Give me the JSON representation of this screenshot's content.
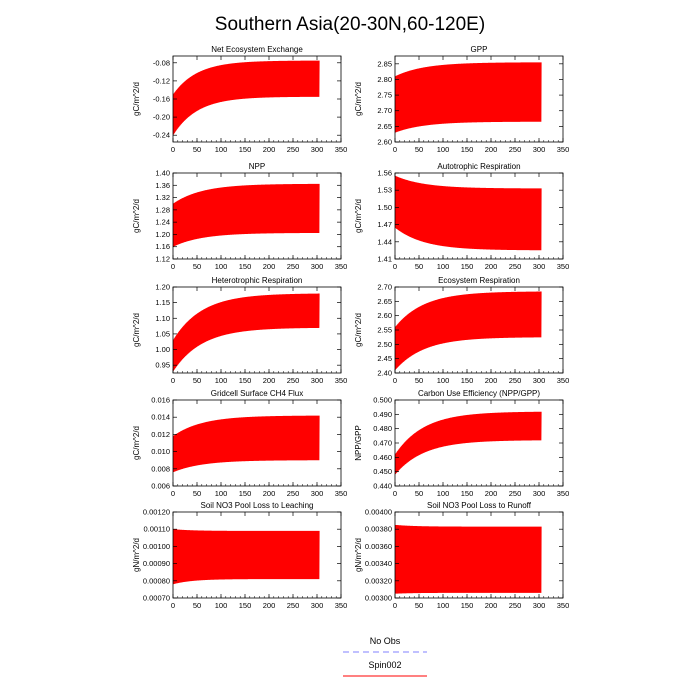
{
  "title": "Southern Asia(20-30N,60-120E)",
  "legend": {
    "items": [
      {
        "label": "No Obs",
        "color": "#8080ff",
        "dash": true
      },
      {
        "label": "Spin002",
        "color": "#ff0000",
        "dash": false
      }
    ]
  },
  "colors": {
    "series": "#ff0000",
    "no_obs": "#8080ff"
  },
  "chart_data": [
    {
      "type": "line",
      "title": "Net Ecosystem Exchange",
      "ylabel": "gC/m^2/d",
      "xlim": [
        0,
        350
      ],
      "xticks": [
        0,
        50,
        100,
        150,
        200,
        250,
        300,
        350
      ],
      "ylim": [
        -0.255,
        -0.065
      ],
      "yticks": [
        -0.24,
        -0.2,
        -0.16,
        -0.12,
        -0.08
      ],
      "ytick_labels": [
        "-0.24",
        "-0.20",
        "-0.16",
        "-0.12",
        "-0.08"
      ],
      "series": [
        {
          "name": "Spin002",
          "years": 305,
          "upper_start": -0.15,
          "upper_end": -0.075,
          "lower_start": -0.24,
          "lower_end": -0.155,
          "tau": 50
        }
      ]
    },
    {
      "type": "line",
      "title": "GPP",
      "ylabel": "gC/m^2/d",
      "xlim": [
        0,
        350
      ],
      "xticks": [
        0,
        50,
        100,
        150,
        200,
        250,
        300,
        350
      ],
      "ylim": [
        2.6,
        2.875
      ],
      "yticks": [
        2.6,
        2.65,
        2.7,
        2.75,
        2.8,
        2.85
      ],
      "ytick_labels": [
        "2.60",
        "2.65",
        "2.70",
        "2.75",
        "2.80",
        "2.85"
      ],
      "series": [
        {
          "name": "Spin002",
          "years": 305,
          "upper_start": 2.81,
          "upper_end": 2.855,
          "lower_start": 2.63,
          "lower_end": 2.665,
          "tau": 60
        }
      ]
    },
    {
      "type": "line",
      "title": "NPP",
      "ylabel": "gC/m^2/d",
      "xlim": [
        0,
        350
      ],
      "xticks": [
        0,
        50,
        100,
        150,
        200,
        250,
        300,
        350
      ],
      "ylim": [
        1.12,
        1.4
      ],
      "yticks": [
        1.12,
        1.16,
        1.2,
        1.24,
        1.28,
        1.32,
        1.36,
        1.4
      ],
      "ytick_labels": [
        "1.12",
        "1.16",
        "1.20",
        "1.24",
        "1.28",
        "1.32",
        "1.36",
        "1.40"
      ],
      "series": [
        {
          "name": "Spin002",
          "years": 305,
          "upper_start": 1.3,
          "upper_end": 1.365,
          "lower_start": 1.16,
          "lower_end": 1.205,
          "tau": 60
        }
      ]
    },
    {
      "type": "line",
      "title": "Autotrophic Respiration",
      "ylabel": "gC/m^2/d",
      "xlim": [
        0,
        350
      ],
      "xticks": [
        0,
        50,
        100,
        150,
        200,
        250,
        300,
        350
      ],
      "ylim": [
        1.41,
        1.56
      ],
      "yticks": [
        1.41,
        1.44,
        1.47,
        1.5,
        1.53,
        1.56
      ],
      "ytick_labels": [
        "1.41",
        "1.44",
        "1.47",
        "1.50",
        "1.53",
        "1.56"
      ],
      "series": [
        {
          "name": "Spin002",
          "years": 305,
          "upper_start": 1.555,
          "upper_end": 1.533,
          "lower_start": 1.465,
          "lower_end": 1.425,
          "tau": 60
        }
      ]
    },
    {
      "type": "line",
      "title": "Heterotrophic Respiration",
      "ylabel": "gC/m^2/d",
      "xlim": [
        0,
        350
      ],
      "xticks": [
        0,
        50,
        100,
        150,
        200,
        250,
        300,
        350
      ],
      "ylim": [
        0.925,
        1.2
      ],
      "yticks": [
        0.95,
        1.0,
        1.05,
        1.1,
        1.15,
        1.2
      ],
      "ytick_labels": [
        "0.95",
        "1.00",
        "1.05",
        "1.10",
        "1.15",
        "1.20"
      ],
      "series": [
        {
          "name": "Spin002",
          "years": 305,
          "upper_start": 1.03,
          "upper_end": 1.18,
          "lower_start": 0.93,
          "lower_end": 1.07,
          "tau": 60
        }
      ]
    },
    {
      "type": "line",
      "title": "Ecosystem Respiration",
      "ylabel": "gC/m^2/d",
      "xlim": [
        0,
        350
      ],
      "xticks": [
        0,
        50,
        100,
        150,
        200,
        250,
        300,
        350
      ],
      "ylim": [
        2.4,
        2.7
      ],
      "yticks": [
        2.4,
        2.45,
        2.5,
        2.55,
        2.6,
        2.65,
        2.7
      ],
      "ytick_labels": [
        "2.40",
        "2.45",
        "2.50",
        "2.55",
        "2.60",
        "2.65",
        "2.70"
      ],
      "series": [
        {
          "name": "Spin002",
          "years": 305,
          "upper_start": 2.56,
          "upper_end": 2.685,
          "lower_start": 2.41,
          "lower_end": 2.525,
          "tau": 60
        }
      ]
    },
    {
      "type": "line",
      "title": "Gridcell Surface CH4 Flux",
      "ylabel": "gC/m^2/d",
      "xlim": [
        0,
        350
      ],
      "xticks": [
        0,
        50,
        100,
        150,
        200,
        250,
        300,
        350
      ],
      "ylim": [
        0.006,
        0.016
      ],
      "yticks": [
        0.006,
        0.008,
        0.01,
        0.012,
        0.014,
        0.016
      ],
      "ytick_labels": [
        "0.006",
        "0.008",
        "0.010",
        "0.012",
        "0.014",
        "0.016"
      ],
      "series": [
        {
          "name": "Spin002",
          "years": 305,
          "upper_start": 0.0118,
          "upper_end": 0.0142,
          "lower_start": 0.0076,
          "lower_end": 0.009,
          "tau": 60
        }
      ]
    },
    {
      "type": "line",
      "title": "Carbon Use Efficiency (NPP/GPP)",
      "ylabel": "NPP/GPP",
      "xlim": [
        0,
        350
      ],
      "xticks": [
        0,
        50,
        100,
        150,
        200,
        250,
        300,
        350
      ],
      "ylim": [
        0.44,
        0.5
      ],
      "yticks": [
        0.44,
        0.45,
        0.46,
        0.47,
        0.48,
        0.49,
        0.5
      ],
      "ytick_labels": [
        "0.440",
        "0.450",
        "0.460",
        "0.470",
        "0.480",
        "0.490",
        "0.500"
      ],
      "series": [
        {
          "name": "Spin002",
          "years": 305,
          "upper_start": 0.462,
          "upper_end": 0.492,
          "lower_start": 0.448,
          "lower_end": 0.472,
          "tau": 60
        }
      ]
    },
    {
      "type": "line",
      "title": "Soil NO3 Pool Loss to Leaching",
      "ylabel": "gN/m^2/d",
      "xlim": [
        0,
        350
      ],
      "xticks": [
        0,
        50,
        100,
        150,
        200,
        250,
        300,
        350
      ],
      "ylim": [
        0.0007,
        0.0012
      ],
      "yticks": [
        0.0007,
        0.0008,
        0.0009,
        0.001,
        0.0011,
        0.0012
      ],
      "ytick_labels": [
        "0.00070",
        "0.00080",
        "0.00090",
        "0.00100",
        "0.00110",
        "0.00120"
      ],
      "series": [
        {
          "name": "Spin002",
          "years": 305,
          "upper_start": 0.0011,
          "upper_end": 0.00109,
          "lower_start": 0.00078,
          "lower_end": 0.00081,
          "tau": 40
        }
      ]
    },
    {
      "type": "line",
      "title": "Soil NO3 Pool Loss to Runoff",
      "ylabel": "gN/m^2/d",
      "xlim": [
        0,
        350
      ],
      "xticks": [
        0,
        50,
        100,
        150,
        200,
        250,
        300,
        350
      ],
      "ylim": [
        0.003,
        0.004
      ],
      "yticks": [
        0.003,
        0.0032,
        0.0034,
        0.0036,
        0.0038,
        0.004
      ],
      "ytick_labels": [
        "0.00300",
        "0.00320",
        "0.00340",
        "0.00360",
        "0.00380",
        "0.00400"
      ],
      "series": [
        {
          "name": "Spin002",
          "years": 305,
          "upper_start": 0.00385,
          "upper_end": 0.00383,
          "lower_start": 0.00305,
          "lower_end": 0.00306,
          "tau": 40
        }
      ]
    }
  ]
}
